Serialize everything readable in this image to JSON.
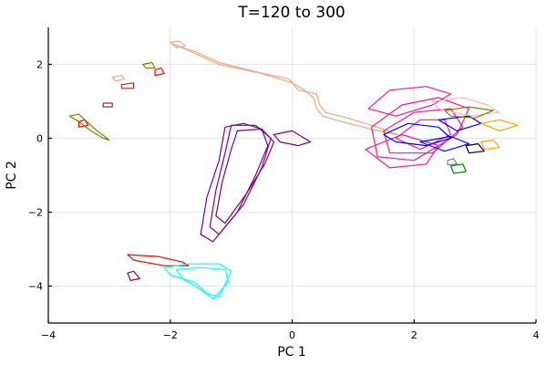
{
  "chart_data": {
    "type": "line",
    "title": "T=120 to 300",
    "xlabel": "PC 1",
    "ylabel": "PC 2",
    "xlim": [
      -4,
      4
    ],
    "ylim": [
      -5,
      3
    ],
    "xticks": [
      -4,
      -2,
      0,
      2,
      4
    ],
    "yticks": [
      -4,
      -2,
      0,
      2
    ],
    "xtick_labels": [
      "−4",
      "−2",
      "0",
      "2",
      "4"
    ],
    "ytick_labels": [
      "−4",
      "−2",
      "0",
      "2"
    ],
    "grid": true,
    "legend": "none",
    "series": [
      {
        "color": "#F4A582",
        "points": [
          [
            -1.95,
            2.55
          ],
          [
            -1.8,
            2.45
          ],
          [
            -1.6,
            2.3
          ],
          [
            -1.2,
            2.0
          ],
          [
            -0.5,
            1.75
          ],
          [
            0.0,
            1.5
          ],
          [
            0.2,
            1.3
          ],
          [
            0.35,
            1.1
          ],
          [
            0.4,
            0.8
          ],
          [
            0.5,
            0.6
          ],
          [
            0.8,
            0.45
          ],
          [
            1.3,
            0.25
          ],
          [
            1.7,
            0.1
          ]
        ]
      },
      {
        "color": "#F4A582",
        "points": [
          [
            -1.9,
            2.5
          ],
          [
            -1.6,
            2.35
          ],
          [
            -1.2,
            2.05
          ],
          [
            -0.6,
            1.8
          ],
          [
            -0.05,
            1.6
          ],
          [
            0.1,
            1.3
          ],
          [
            0.4,
            1.2
          ],
          [
            0.45,
            0.9
          ],
          [
            0.55,
            0.7
          ],
          [
            0.9,
            0.55
          ],
          [
            1.4,
            0.3
          ],
          [
            1.8,
            0.05
          ]
        ]
      },
      {
        "color": "#F4A582",
        "points": [
          [
            -2.0,
            2.6
          ],
          [
            -1.85,
            2.62
          ],
          [
            -1.75,
            2.5
          ],
          [
            -1.9,
            2.45
          ],
          [
            -2.0,
            2.6
          ]
        ]
      },
      {
        "color": "#F4A582",
        "points": [
          [
            -2.95,
            1.65
          ],
          [
            -2.8,
            1.7
          ],
          [
            -2.75,
            1.6
          ],
          [
            -2.9,
            1.55
          ],
          [
            -2.95,
            1.65
          ]
        ]
      },
      {
        "color": "#FF1493",
        "points": [
          [
            1.3,
            0.3
          ],
          [
            1.8,
            0.9
          ],
          [
            2.4,
            1.1
          ],
          [
            2.9,
            0.8
          ],
          [
            2.7,
            0.1
          ],
          [
            2.0,
            -0.6
          ],
          [
            1.4,
            -0.5
          ],
          [
            1.3,
            0.3
          ]
        ]
      },
      {
        "color": "#FF1493",
        "points": [
          [
            1.5,
            0.2
          ],
          [
            2.0,
            0.7
          ],
          [
            2.6,
            0.8
          ],
          [
            2.8,
            0.3
          ],
          [
            2.3,
            -0.4
          ],
          [
            1.6,
            -0.4
          ],
          [
            1.5,
            0.2
          ]
        ]
      },
      {
        "color": "#FF1493",
        "points": [
          [
            1.7,
            0.0
          ],
          [
            2.1,
            0.5
          ],
          [
            2.5,
            0.5
          ],
          [
            2.6,
            0.1
          ],
          [
            2.1,
            -0.3
          ],
          [
            1.7,
            0.0
          ]
        ]
      },
      {
        "color": "#FF1493",
        "points": [
          [
            1.25,
            0.8
          ],
          [
            1.6,
            1.3
          ],
          [
            2.2,
            1.4
          ],
          [
            2.6,
            1.2
          ],
          [
            2.3,
            0.9
          ],
          [
            1.7,
            0.6
          ],
          [
            1.25,
            0.8
          ]
        ]
      },
      {
        "color": "#FF1493",
        "points": [
          [
            1.2,
            -0.3
          ],
          [
            1.6,
            -0.8
          ],
          [
            2.2,
            -0.7
          ],
          [
            2.4,
            -0.2
          ],
          [
            1.8,
            0.1
          ],
          [
            1.2,
            -0.3
          ]
        ]
      },
      {
        "color": "#FFB6C1",
        "points": [
          [
            2.3,
            1.0
          ],
          [
            2.8,
            1.1
          ],
          [
            3.2,
            0.9
          ],
          [
            3.4,
            0.7
          ],
          [
            2.9,
            0.6
          ],
          [
            2.4,
            0.8
          ],
          [
            2.3,
            1.0
          ]
        ]
      },
      {
        "color": "#0000FF",
        "points": [
          [
            1.5,
            0.1
          ],
          [
            1.9,
            0.4
          ],
          [
            2.4,
            0.3
          ],
          [
            2.6,
            0.0
          ],
          [
            2.2,
            -0.2
          ],
          [
            1.7,
            -0.1
          ],
          [
            1.5,
            0.1
          ]
        ]
      },
      {
        "color": "#0000FF",
        "points": [
          [
            2.4,
            0.5
          ],
          [
            2.9,
            0.6
          ],
          [
            3.1,
            0.4
          ],
          [
            2.7,
            0.2
          ],
          [
            2.4,
            0.5
          ]
        ]
      },
      {
        "color": "#0000FF",
        "points": [
          [
            2.1,
            -0.1
          ],
          [
            2.6,
            0.05
          ],
          [
            2.9,
            -0.15
          ],
          [
            2.5,
            -0.35
          ],
          [
            2.1,
            -0.1
          ]
        ]
      },
      {
        "color": "#808000",
        "points": [
          [
            2.5,
            0.75
          ],
          [
            2.9,
            0.85
          ],
          [
            3.3,
            0.75
          ],
          [
            3.0,
            0.55
          ],
          [
            2.6,
            0.6
          ],
          [
            2.5,
            0.75
          ]
        ]
      },
      {
        "color": "#FFA500",
        "points": [
          [
            3.1,
            0.4
          ],
          [
            3.4,
            0.5
          ],
          [
            3.7,
            0.35
          ],
          [
            3.4,
            0.2
          ],
          [
            3.1,
            0.4
          ]
        ]
      },
      {
        "color": "#FFA500",
        "points": [
          [
            3.1,
            -0.1
          ],
          [
            3.3,
            -0.05
          ],
          [
            3.4,
            -0.25
          ],
          [
            3.15,
            -0.3
          ],
          [
            3.1,
            -0.1
          ]
        ]
      },
      {
        "color": "#000000",
        "points": [
          [
            2.85,
            -0.2
          ],
          [
            3.05,
            -0.15
          ],
          [
            3.15,
            -0.35
          ],
          [
            2.9,
            -0.4
          ],
          [
            2.85,
            -0.2
          ]
        ]
      },
      {
        "color": "#008000",
        "points": [
          [
            2.6,
            -0.75
          ],
          [
            2.8,
            -0.7
          ],
          [
            2.85,
            -0.9
          ],
          [
            2.65,
            -0.95
          ],
          [
            2.6,
            -0.75
          ]
        ]
      },
      {
        "color": "#808080",
        "points": [
          [
            2.55,
            -0.6
          ],
          [
            2.65,
            -0.55
          ],
          [
            2.7,
            -0.7
          ],
          [
            2.55,
            -0.72
          ],
          [
            2.55,
            -0.6
          ]
        ]
      },
      {
        "color": "#800080",
        "points": [
          [
            -1.1,
            0.3
          ],
          [
            -0.8,
            0.4
          ],
          [
            -0.5,
            0.25
          ],
          [
            -0.4,
            -0.2
          ],
          [
            -0.6,
            -1.0
          ],
          [
            -0.9,
            -2.0
          ],
          [
            -1.3,
            -2.8
          ],
          [
            -1.5,
            -2.6
          ],
          [
            -1.4,
            -1.6
          ],
          [
            -1.2,
            -0.6
          ],
          [
            -1.1,
            0.3
          ]
        ]
      },
      {
        "color": "#800080",
        "points": [
          [
            -1.0,
            0.35
          ],
          [
            -0.6,
            0.35
          ],
          [
            -0.35,
            0.0
          ],
          [
            -0.5,
            -0.8
          ],
          [
            -0.8,
            -1.8
          ],
          [
            -1.2,
            -2.6
          ],
          [
            -1.35,
            -2.4
          ],
          [
            -1.25,
            -1.4
          ],
          [
            -1.1,
            -0.4
          ],
          [
            -1.0,
            0.35
          ]
        ]
      },
      {
        "color": "#800080",
        "points": [
          [
            -0.9,
            0.2
          ],
          [
            -0.5,
            0.25
          ],
          [
            -0.3,
            -0.1
          ],
          [
            -0.45,
            -0.7
          ],
          [
            -0.75,
            -1.5
          ],
          [
            -1.1,
            -2.3
          ],
          [
            -1.25,
            -2.1
          ],
          [
            -1.15,
            -1.2
          ],
          [
            -1.0,
            -0.3
          ],
          [
            -0.9,
            0.2
          ]
        ]
      },
      {
        "color": "#800080",
        "points": [
          [
            -0.3,
            0.1
          ],
          [
            0.0,
            0.2
          ],
          [
            0.3,
            -0.1
          ],
          [
            0.1,
            -0.2
          ],
          [
            -0.2,
            -0.1
          ],
          [
            -0.3,
            0.1
          ]
        ]
      },
      {
        "color": "#800080",
        "points": [
          [
            -2.7,
            -3.65
          ],
          [
            -2.6,
            -3.6
          ],
          [
            -2.5,
            -3.8
          ],
          [
            -2.65,
            -3.85
          ],
          [
            -2.7,
            -3.65
          ]
        ]
      },
      {
        "color": "#FF0000",
        "points": [
          [
            -2.7,
            -3.15
          ],
          [
            -2.2,
            -3.2
          ],
          [
            -1.8,
            -3.35
          ],
          [
            -1.7,
            -3.45
          ],
          [
            -2.1,
            -3.45
          ],
          [
            -2.6,
            -3.3
          ],
          [
            -2.7,
            -3.15
          ]
        ]
      },
      {
        "color": "#00FFFF",
        "points": [
          [
            -2.1,
            -3.5
          ],
          [
            -1.7,
            -3.4
          ],
          [
            -1.2,
            -3.4
          ],
          [
            -1.0,
            -3.6
          ],
          [
            -1.2,
            -4.3
          ],
          [
            -1.4,
            -4.2
          ],
          [
            -1.6,
            -3.9
          ],
          [
            -2.0,
            -3.7
          ],
          [
            -2.1,
            -3.5
          ]
        ]
      },
      {
        "color": "#00FFFF",
        "points": [
          [
            -1.9,
            -3.55
          ],
          [
            -1.5,
            -3.5
          ],
          [
            -1.1,
            -3.55
          ],
          [
            -1.05,
            -3.9
          ],
          [
            -1.3,
            -4.35
          ],
          [
            -1.5,
            -4.1
          ],
          [
            -1.8,
            -3.8
          ],
          [
            -1.9,
            -3.55
          ]
        ]
      },
      {
        "color": "#FF0000",
        "points": [
          [
            -3.5,
            0.45
          ],
          [
            -3.4,
            0.5
          ],
          [
            -3.35,
            0.35
          ],
          [
            -3.5,
            0.3
          ],
          [
            -3.5,
            0.45
          ]
        ]
      },
      {
        "color": "#FF0000",
        "points": [
          [
            -2.25,
            1.85
          ],
          [
            -2.15,
            1.9
          ],
          [
            -2.1,
            1.75
          ],
          [
            -2.25,
            1.7
          ],
          [
            -2.25,
            1.85
          ]
        ]
      },
      {
        "color": "#808000",
        "points": [
          [
            -3.65,
            0.6
          ],
          [
            -3.5,
            0.65
          ],
          [
            -3.4,
            0.5
          ],
          [
            -3.2,
            0.2
          ],
          [
            -3.0,
            -0.05
          ],
          [
            -3.1,
            0.0
          ],
          [
            -3.3,
            0.2
          ],
          [
            -3.5,
            0.45
          ],
          [
            -3.65,
            0.6
          ]
        ]
      },
      {
        "color": "#808000",
        "points": [
          [
            -2.45,
            2.0
          ],
          [
            -2.3,
            2.05
          ],
          [
            -2.25,
            1.9
          ],
          [
            -2.4,
            1.9
          ],
          [
            -2.45,
            2.0
          ]
        ]
      },
      {
        "color": "#A52A2A",
        "points": [
          [
            -3.1,
            0.95
          ],
          [
            -2.95,
            0.95
          ],
          [
            -2.95,
            0.85
          ],
          [
            -3.1,
            0.85
          ],
          [
            -3.1,
            0.95
          ]
        ]
      },
      {
        "color": "#A52A2A",
        "points": [
          [
            -2.8,
            1.45
          ],
          [
            -2.6,
            1.5
          ],
          [
            -2.6,
            1.35
          ],
          [
            -2.8,
            1.35
          ],
          [
            -2.8,
            1.45
          ]
        ]
      }
    ]
  }
}
